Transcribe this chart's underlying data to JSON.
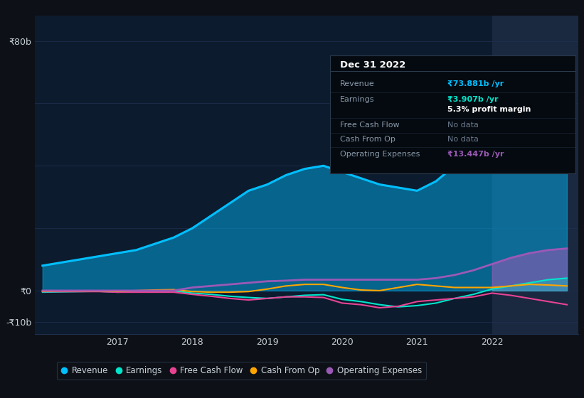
{
  "background_color": "#0d1117",
  "plot_bg_color": "#0d1b2e",
  "highlight_bg_color": "#1a2840",
  "grid_color": "#1e3050",
  "text_color": "#c8d0d8",
  "ylim": [
    -14,
    88
  ],
  "x_years": [
    2016.0,
    2016.25,
    2016.5,
    2016.75,
    2017.0,
    2017.25,
    2017.5,
    2017.75,
    2018.0,
    2018.25,
    2018.5,
    2018.75,
    2019.0,
    2019.25,
    2019.5,
    2019.75,
    2020.0,
    2020.25,
    2020.5,
    2020.75,
    2021.0,
    2021.25,
    2021.5,
    2021.75,
    2022.0,
    2022.25,
    2022.5,
    2022.75,
    2023.0
  ],
  "revenue": [
    8,
    9,
    10,
    11,
    12,
    13,
    15,
    17,
    20,
    24,
    28,
    32,
    34,
    37,
    39,
    40,
    38,
    36,
    34,
    33,
    32,
    35,
    40,
    52,
    62,
    66,
    69,
    73,
    74
  ],
  "earnings": [
    -0.5,
    -0.4,
    -0.3,
    -0.2,
    -0.5,
    -0.3,
    -0.2,
    -0.1,
    -0.8,
    -1.2,
    -1.8,
    -2.2,
    -2.5,
    -2.0,
    -1.5,
    -1.3,
    -2.8,
    -3.5,
    -4.5,
    -5.2,
    -4.8,
    -4.0,
    -2.5,
    -1.2,
    0.5,
    1.5,
    2.5,
    3.5,
    4.0
  ],
  "free_cash_flow": [
    -0.3,
    -0.3,
    -0.3,
    -0.3,
    -0.5,
    -0.5,
    -0.5,
    -0.5,
    -1.2,
    -1.8,
    -2.5,
    -3.0,
    -2.5,
    -2.0,
    -2.0,
    -2.2,
    -4.0,
    -4.5,
    -5.5,
    -5.0,
    -3.5,
    -3.0,
    -2.5,
    -2.0,
    -0.8,
    -1.5,
    -2.5,
    -3.5,
    -4.5
  ],
  "cash_from_op": [
    -0.2,
    -0.1,
    -0.1,
    -0.1,
    -0.2,
    0.0,
    0.2,
    0.3,
    -0.3,
    -0.5,
    -0.5,
    -0.3,
    0.5,
    1.5,
    2.0,
    2.0,
    1.0,
    0.2,
    0.0,
    1.0,
    2.0,
    1.5,
    1.0,
    1.0,
    1.0,
    1.5,
    2.0,
    1.8,
    1.5
  ],
  "operating_expenses": [
    0.0,
    0.0,
    0.0,
    0.0,
    0.0,
    0.0,
    0.0,
    0.0,
    1.0,
    1.5,
    2.0,
    2.5,
    3.0,
    3.2,
    3.5,
    3.5,
    3.5,
    3.5,
    3.5,
    3.5,
    3.5,
    4.0,
    5.0,
    6.5,
    8.5,
    10.5,
    12.0,
    13.0,
    13.5
  ],
  "revenue_color": "#00bfff",
  "earnings_color": "#00e5cc",
  "free_cash_flow_color": "#e84393",
  "cash_from_op_color": "#ffa500",
  "operating_expenses_color": "#9b59b6",
  "highlight_start": 2022.0,
  "xtick_positions": [
    2017,
    2018,
    2019,
    2020,
    2021,
    2022
  ],
  "xtick_labels": [
    "2017",
    "2018",
    "2019",
    "2020",
    "2021",
    "2022"
  ],
  "info_box": {
    "title": "Dec 31 2022",
    "rows": [
      {
        "label": "Revenue",
        "value": "₹73.881b /yr",
        "value_color": "#00bfff",
        "value_bold": true
      },
      {
        "label": "Earnings",
        "value": "₹3.907b /yr",
        "value_color": "#00e5cc",
        "value_bold": true
      },
      {
        "label": "",
        "value": "5.3% profit margin",
        "value_color": "#ffffff",
        "value_bold": true
      },
      {
        "label": "Free Cash Flow",
        "value": "No data",
        "value_color": "#6b7a8d",
        "value_bold": false
      },
      {
        "label": "Cash From Op",
        "value": "No data",
        "value_color": "#6b7a8d",
        "value_bold": false
      },
      {
        "label": "Operating Expenses",
        "value": "₹13.447b /yr",
        "value_color": "#9b59b6",
        "value_bold": true
      }
    ]
  },
  "legend_items": [
    {
      "label": "Revenue",
      "color": "#00bfff"
    },
    {
      "label": "Earnings",
      "color": "#00e5cc"
    },
    {
      "label": "Free Cash Flow",
      "color": "#e84393"
    },
    {
      "label": "Cash From Op",
      "color": "#ffa500"
    },
    {
      "label": "Operating Expenses",
      "color": "#9b59b6"
    }
  ]
}
